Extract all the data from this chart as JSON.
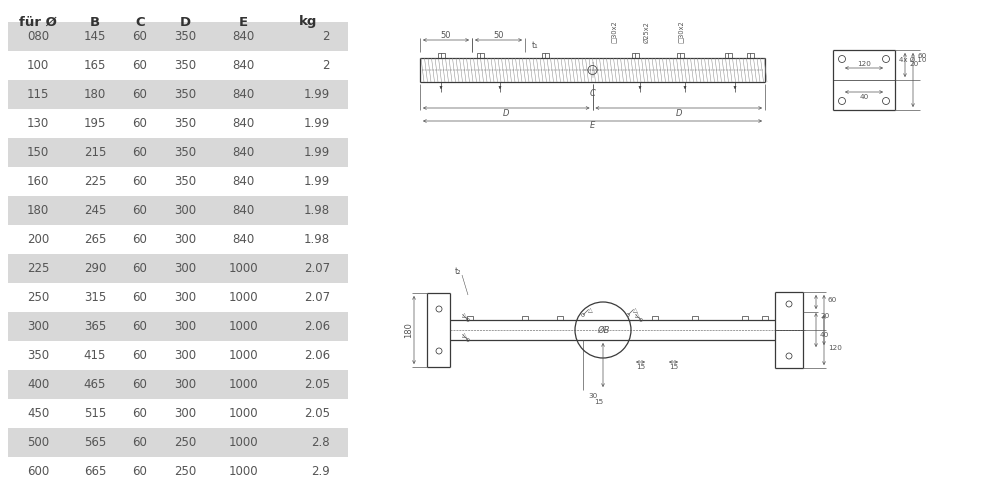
{
  "headers": [
    "für Ø",
    "B",
    "C",
    "D",
    "E",
    "kg"
  ],
  "rows": [
    [
      "080",
      "145",
      "60",
      "350",
      "840",
      "2"
    ],
    [
      "100",
      "165",
      "60",
      "350",
      "840",
      "2"
    ],
    [
      "115",
      "180",
      "60",
      "350",
      "840",
      "1.99"
    ],
    [
      "130",
      "195",
      "60",
      "350",
      "840",
      "1.99"
    ],
    [
      "150",
      "215",
      "60",
      "350",
      "840",
      "1.99"
    ],
    [
      "160",
      "225",
      "60",
      "350",
      "840",
      "1.99"
    ],
    [
      "180",
      "245",
      "60",
      "300",
      "840",
      "1.98"
    ],
    [
      "200",
      "265",
      "60",
      "300",
      "840",
      "1.98"
    ],
    [
      "225",
      "290",
      "60",
      "300",
      "1000",
      "2.07"
    ],
    [
      "250",
      "315",
      "60",
      "300",
      "1000",
      "2.07"
    ],
    [
      "300",
      "365",
      "60",
      "300",
      "1000",
      "2.06"
    ],
    [
      "350",
      "415",
      "60",
      "300",
      "1000",
      "2.06"
    ],
    [
      "400",
      "465",
      "60",
      "300",
      "1000",
      "2.05"
    ],
    [
      "450",
      "515",
      "60",
      "300",
      "1000",
      "2.05"
    ],
    [
      "500",
      "565",
      "60",
      "250",
      "1000",
      "2.8"
    ],
    [
      "600",
      "665",
      "60",
      "250",
      "1000",
      "2.9"
    ]
  ],
  "shaded_rows": [
    0,
    2,
    4,
    6,
    8,
    10,
    12,
    14
  ],
  "row_bg_shaded": "#d8d8d8",
  "row_bg_normal": "#ffffff",
  "text_color": "#555555",
  "header_text_color": "#333333",
  "font_size": 8.5,
  "header_font_size": 9.5,
  "bg_color": "#ffffff"
}
